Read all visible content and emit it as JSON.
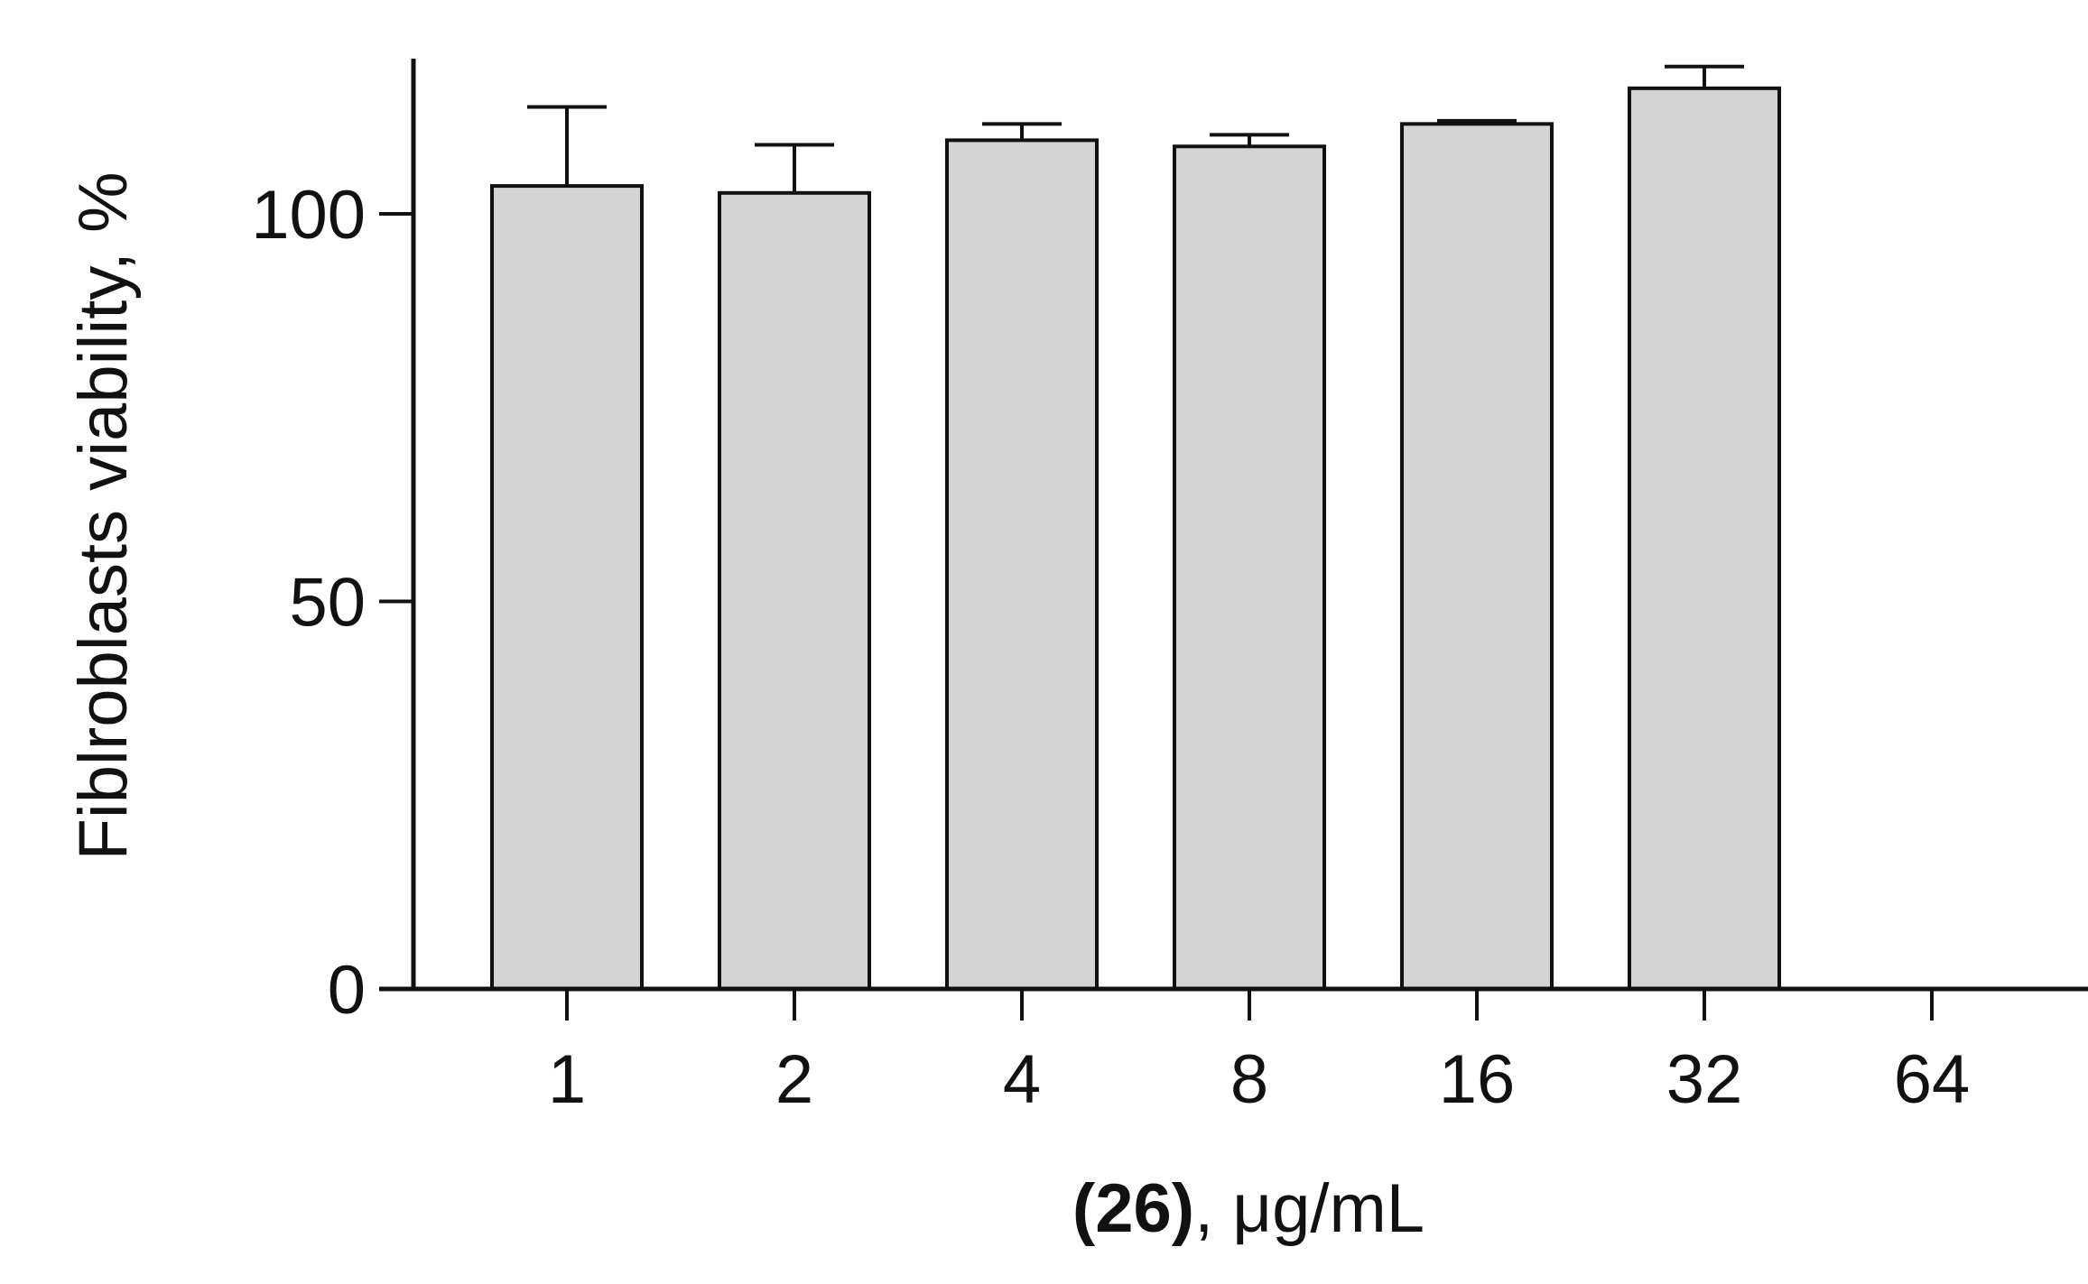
{
  "chart_data": {
    "type": "bar",
    "categories": [
      "1",
      "2",
      "4",
      "8",
      "16",
      "32",
      "64"
    ],
    "values": [
      103.6,
      102.7,
      109.5,
      108.7,
      111.6,
      116.2,
      null
    ],
    "error_upper": [
      113.8,
      108.9,
      111.6,
      110.2,
      112.0,
      119.0,
      null
    ],
    "xlabel_bold": "(26)",
    "xlabel_rest": ", μg/mL",
    "ylabel": "Fiblroblasts viability, %",
    "yticks": [
      0,
      50,
      100
    ],
    "ytick_labels": [
      "0",
      "50",
      "100"
    ],
    "ylim": [
      0,
      120
    ],
    "grid": false,
    "bar_color": "#d4d4d4",
    "edge_color": "#111111"
  }
}
